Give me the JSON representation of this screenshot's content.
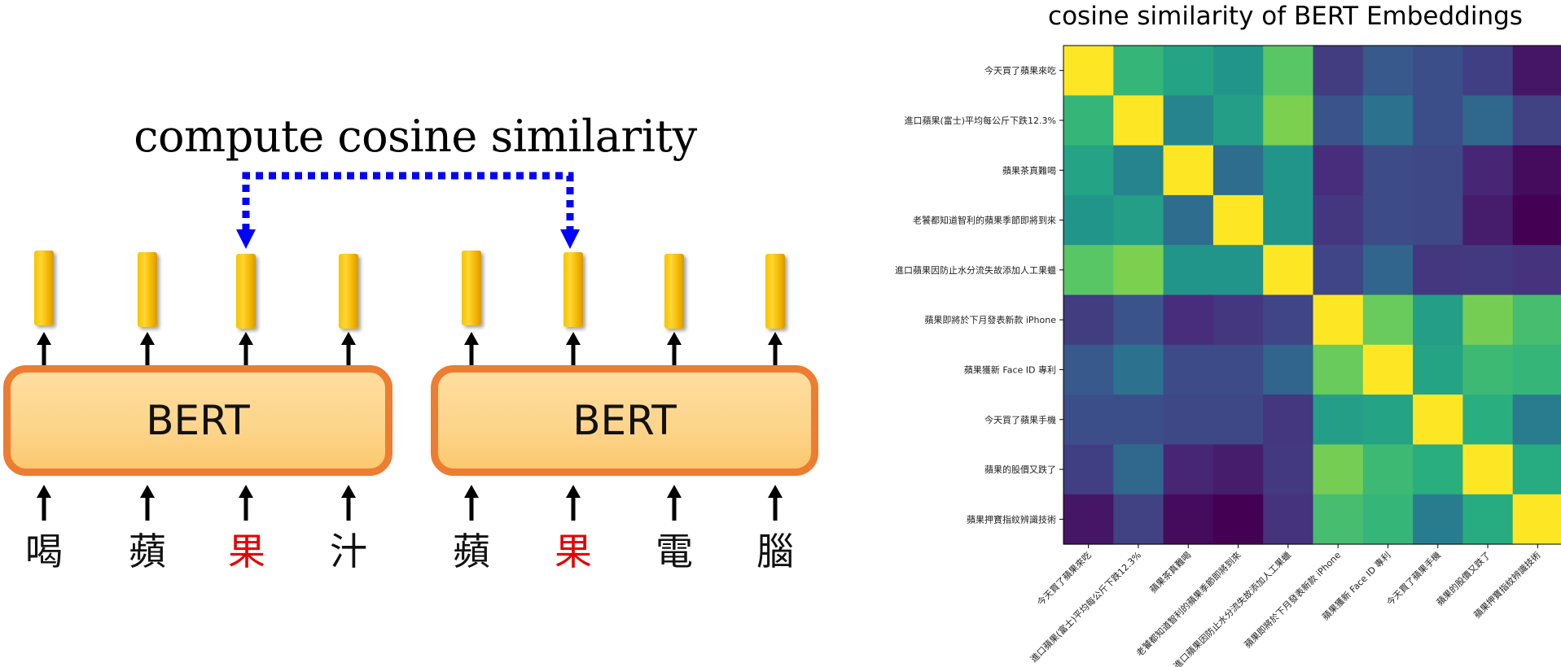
{
  "diagram": {
    "title": "compute cosine similarity",
    "bert_left_label": "BERT",
    "bert_right_label": "BERT",
    "left_tokens": [
      {
        "text": "喝",
        "highlight": false
      },
      {
        "text": "蘋",
        "highlight": false
      },
      {
        "text": "果",
        "highlight": true
      },
      {
        "text": "汁",
        "highlight": false
      }
    ],
    "right_tokens": [
      {
        "text": "蘋",
        "highlight": false
      },
      {
        "text": "果",
        "highlight": true
      },
      {
        "text": "電",
        "highlight": false
      },
      {
        "text": "腦",
        "highlight": false
      }
    ],
    "colors": {
      "bert_border": "#ed7d31",
      "bert_fill": "#fdd58c",
      "embedding": "#ffc000",
      "highlight_token": "#e60000",
      "dotted_link": "#0000ff"
    }
  },
  "chart_data": {
    "type": "heatmap",
    "title": "cosine similarity of BERT Embeddings",
    "row_labels": [
      "今天買了蘋果來吃",
      "進口蘋果(富士)平均每公斤下跌12.3%",
      "蘋果茶真難喝",
      "老饕都知道智利的蘋果季節即將到來",
      "進口蘋果因防止水分流失故添加人工果蠟",
      "蘋果即將於下月發表新款 iPhone",
      "蘋果獲新 Face ID 專利",
      "今天買了蘋果手機",
      "蘋果的股價又跌了",
      "蘋果押寶指紋辨識技術"
    ],
    "col_labels": [
      "今天買了蘋果來吃",
      "進口蘋果(富士)平均每公斤下跌12.3%",
      "蘋果茶真難喝",
      "老饕都知道智利的蘋果季節即將到來",
      "進口蘋果因防止水分流失故添加人工果蠟",
      "蘋果即將於下月發表新款 iPhone",
      "蘋果獲新 Face ID 專利",
      "今天買了蘋果手機",
      "蘋果的股價又跌了",
      "蘋果押寶指紋辨識技術"
    ],
    "values": [
      [
        1.0,
        0.66,
        0.58,
        0.52,
        0.74,
        0.18,
        0.28,
        0.24,
        0.19,
        0.06
      ],
      [
        0.66,
        1.0,
        0.45,
        0.56,
        0.8,
        0.26,
        0.38,
        0.24,
        0.34,
        0.2
      ],
      [
        0.58,
        0.45,
        1.0,
        0.36,
        0.52,
        0.13,
        0.23,
        0.22,
        0.11,
        0.03
      ],
      [
        0.52,
        0.56,
        0.36,
        1.0,
        0.52,
        0.16,
        0.23,
        0.22,
        0.08,
        0.0
      ],
      [
        0.74,
        0.8,
        0.52,
        0.52,
        1.0,
        0.21,
        0.33,
        0.16,
        0.17,
        0.15
      ],
      [
        0.18,
        0.26,
        0.13,
        0.16,
        0.21,
        1.0,
        0.77,
        0.56,
        0.79,
        0.7
      ],
      [
        0.28,
        0.38,
        0.23,
        0.23,
        0.33,
        0.77,
        1.0,
        0.58,
        0.68,
        0.66
      ],
      [
        0.24,
        0.24,
        0.22,
        0.22,
        0.16,
        0.56,
        0.58,
        1.0,
        0.63,
        0.42
      ],
      [
        0.19,
        0.34,
        0.11,
        0.08,
        0.17,
        0.79,
        0.68,
        0.63,
        1.0,
        0.62
      ],
      [
        0.06,
        0.2,
        0.03,
        0.0,
        0.15,
        0.7,
        0.66,
        0.42,
        0.62,
        1.0
      ]
    ],
    "vmin": 0,
    "vmax": 1,
    "colormap": "viridis",
    "grid": false,
    "colorbar": false
  }
}
